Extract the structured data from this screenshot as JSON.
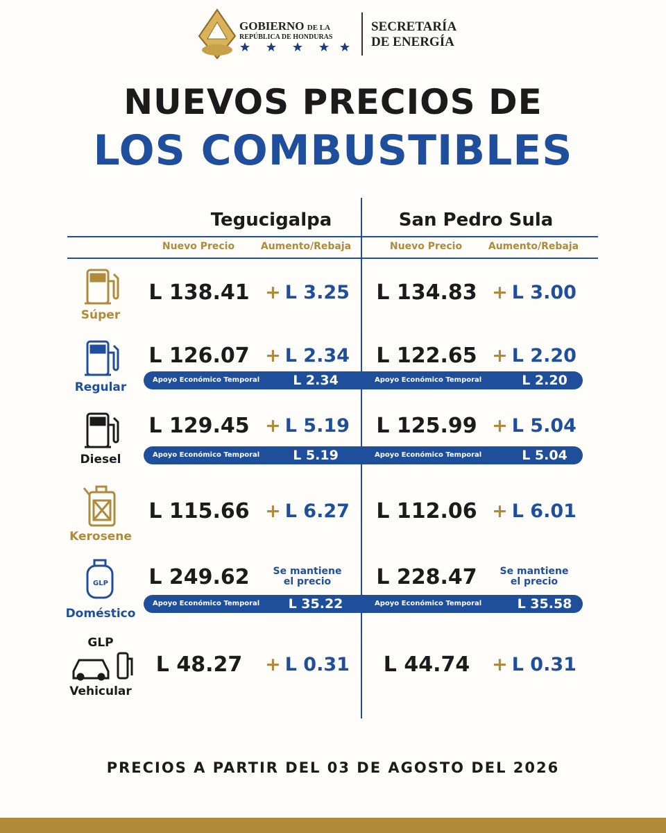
{
  "header": {
    "gov_line1": "GOBIERNO",
    "gov_small": "DE LA",
    "gov_line2": "REPÚBLICA DE HONDURAS",
    "sec_line1": "SECRETARÍA",
    "sec_line2": "DE ENERGÍA"
  },
  "title": {
    "line1": "NUEVOS PRECIOS DE",
    "line2": "LOS COMBUSTIBLES"
  },
  "table": {
    "cities": [
      "Tegucigalpa",
      "San Pedro Sula"
    ],
    "columns": [
      "Nuevo Precio",
      "Aumento/Rebaja"
    ],
    "rows": [
      {
        "fuel": "Súper",
        "prices": [
          {
            "price": "L 138.41",
            "sign": "+",
            "change": "L 3.25"
          },
          {
            "price": "L 134.83",
            "sign": "+",
            "change": "L 3.00"
          }
        ]
      },
      {
        "fuel": "Regular",
        "prices": [
          {
            "price": "L 126.07",
            "sign": "+",
            "change": "L 2.34"
          },
          {
            "price": "L 122.65",
            "sign": "+",
            "change": "L 2.20"
          }
        ],
        "support": {
          "label": "Apoyo Económico Temporal",
          "amounts": [
            "L 2.34",
            "L 2.20"
          ]
        }
      },
      {
        "fuel": "Diesel",
        "prices": [
          {
            "price": "L 129.45",
            "sign": "+",
            "change": "L 5.19"
          },
          {
            "price": "L 125.99",
            "sign": "+",
            "change": "L 5.04"
          }
        ],
        "support": {
          "label": "Apoyo Económico Temporal",
          "amounts": [
            "L 5.19",
            "L 5.04"
          ]
        }
      },
      {
        "fuel": "Kerosene",
        "prices": [
          {
            "price": "L 115.66",
            "sign": "+",
            "change": "L 6.27"
          },
          {
            "price": "L 112.06",
            "sign": "+",
            "change": "L 6.01"
          }
        ]
      },
      {
        "fuel": "Doméstico",
        "icon_text": "GLP",
        "prices": [
          {
            "price": "L 249.62",
            "change": "Se mantiene el precio"
          },
          {
            "price": "L 228.47",
            "change": "Se mantiene el precio"
          }
        ],
        "support": {
          "label": "Apoyo Económico Temporal",
          "amounts": [
            "L 35.22",
            "L 35.58"
          ]
        }
      },
      {
        "fuel_top": "GLP",
        "fuel": "Vehicular",
        "prices": [
          {
            "price": "L 48.27",
            "sign": "+",
            "change": "L 0.31"
          },
          {
            "price": "L 44.74",
            "sign": "+",
            "change": "L 0.31"
          }
        ]
      }
    ]
  },
  "footer": "PRECIOS A PARTIR DEL 03 DE AGOSTO DEL 2026"
}
